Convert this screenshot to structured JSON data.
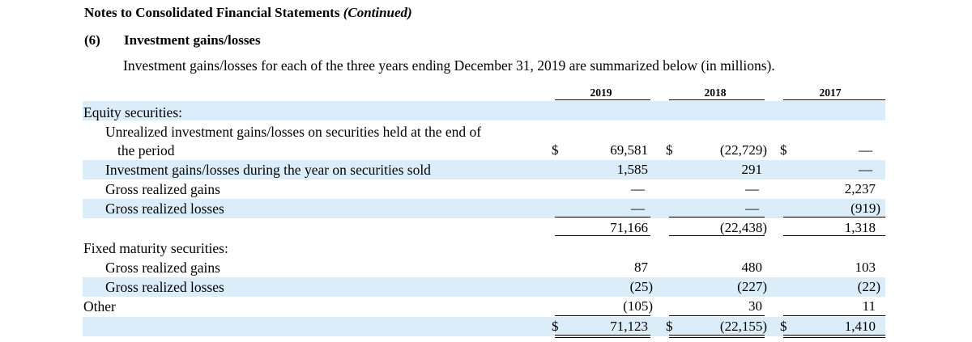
{
  "header": {
    "title": "Notes to Consolidated Financial Statements",
    "title_suffix": "(Continued)",
    "section_number": "(6)",
    "section_title": "Investment gains/losses",
    "intro": "Investment gains/losses for each of the three years ending December 31, 2019 are summarized below (in millions)."
  },
  "columns": [
    "2019",
    "2018",
    "2017"
  ],
  "rows": {
    "equity_heading": "Equity securities:",
    "unrealized_label_1": "Unrealized investment gains/losses on securities held at the end of",
    "unrealized_label_2": "the period",
    "unrealized": [
      "69,581",
      "(22,729)",
      "—"
    ],
    "sold_label": "Investment gains/losses during the year on securities sold",
    "sold": [
      "1,585",
      "291",
      "—"
    ],
    "eq_gains_label": "Gross realized gains",
    "eq_gains": [
      "—",
      "—",
      "2,237"
    ],
    "eq_losses_label": "Gross realized losses",
    "eq_losses": [
      "—",
      "—",
      "(919)"
    ],
    "eq_subtotal": [
      "71,166",
      "(22,438)",
      "1,318"
    ],
    "fixed_heading": "Fixed maturity securities:",
    "fm_gains_label": "Gross realized gains",
    "fm_gains": [
      "87",
      "480",
      "103"
    ],
    "fm_losses_label": "Gross realized losses",
    "fm_losses": [
      "(25)",
      "(227)",
      "(22)"
    ],
    "other_label": "Other",
    "other": [
      "(105)",
      "30",
      "11"
    ],
    "total": [
      "71,123",
      "(22,155)",
      "1,410"
    ]
  },
  "currency_symbol": "$"
}
